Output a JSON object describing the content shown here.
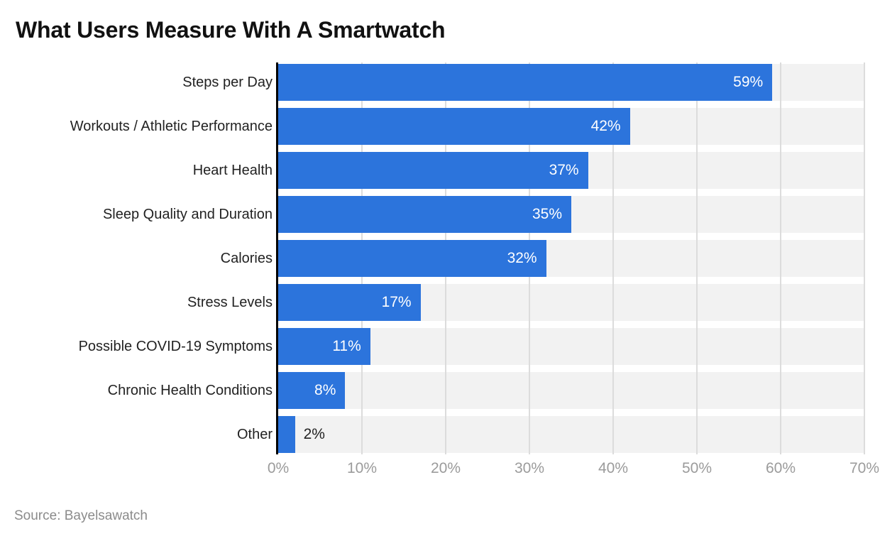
{
  "chart_data": {
    "type": "bar",
    "orientation": "horizontal",
    "title": "What Users Measure With A Smartwatch",
    "categories": [
      "Steps per Day",
      "Workouts / Athletic Performance",
      "Heart Health",
      "Sleep Quality and Duration",
      "Calories",
      "Stress Levels",
      "Possible COVID-19 Symptoms",
      "Chronic Health Conditions",
      "Other"
    ],
    "values": [
      59,
      42,
      37,
      35,
      32,
      17,
      11,
      8,
      2
    ],
    "value_labels": [
      "59%",
      "42%",
      "37%",
      "35%",
      "32%",
      "17%",
      "11%",
      "8%",
      "2%"
    ],
    "x_ticks": [
      "0%",
      "10%",
      "20%",
      "30%",
      "40%",
      "50%",
      "60%",
      "70%"
    ],
    "xlim": [
      0,
      70
    ],
    "grid": "vertical-gridlines-on",
    "legend": "none",
    "source": "Source: Bayelsawatch",
    "colors": {
      "bar": "#2c74dc",
      "track": "#f2f2f2",
      "gridline": "#dcdcdc",
      "axis_line": "#000000",
      "tick_label": "#9b9b9b",
      "category_label": "#222222",
      "value_label_inside": "#ffffff",
      "value_label_outside": "#222222",
      "title": "#111111",
      "source": "#8b8b8b"
    }
  }
}
